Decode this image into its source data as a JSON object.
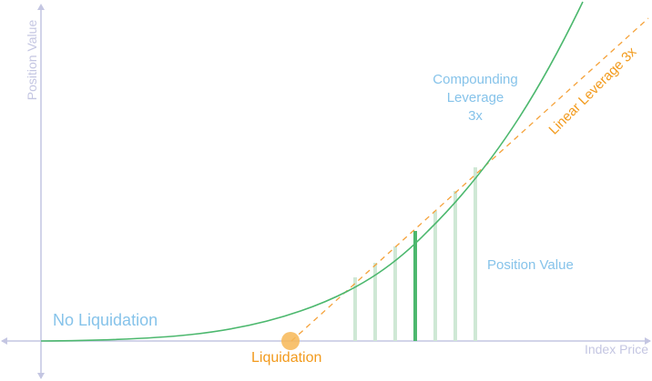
{
  "labels": {
    "y_axis": "Position Value",
    "x_axis": "Index Price",
    "no_liquidation": "No Liquidation",
    "liquidation": "Liquidation",
    "compounding_line1": "Compounding",
    "compounding_line2": "Leverage",
    "compounding_line3": "3x",
    "linear": "Linear Leverage 3x",
    "position_value": "Position Value"
  },
  "colors": {
    "axis": "#c4c6e2",
    "curve": "#4cb86e",
    "linear": "#f5a23a",
    "liquidation_dot": "#f7b756",
    "bar": "#cfe8d5",
    "bar_highlight": "#4cb86e",
    "blue_text": "#86c3ea",
    "orange_text": "#f29a1c"
  }
}
